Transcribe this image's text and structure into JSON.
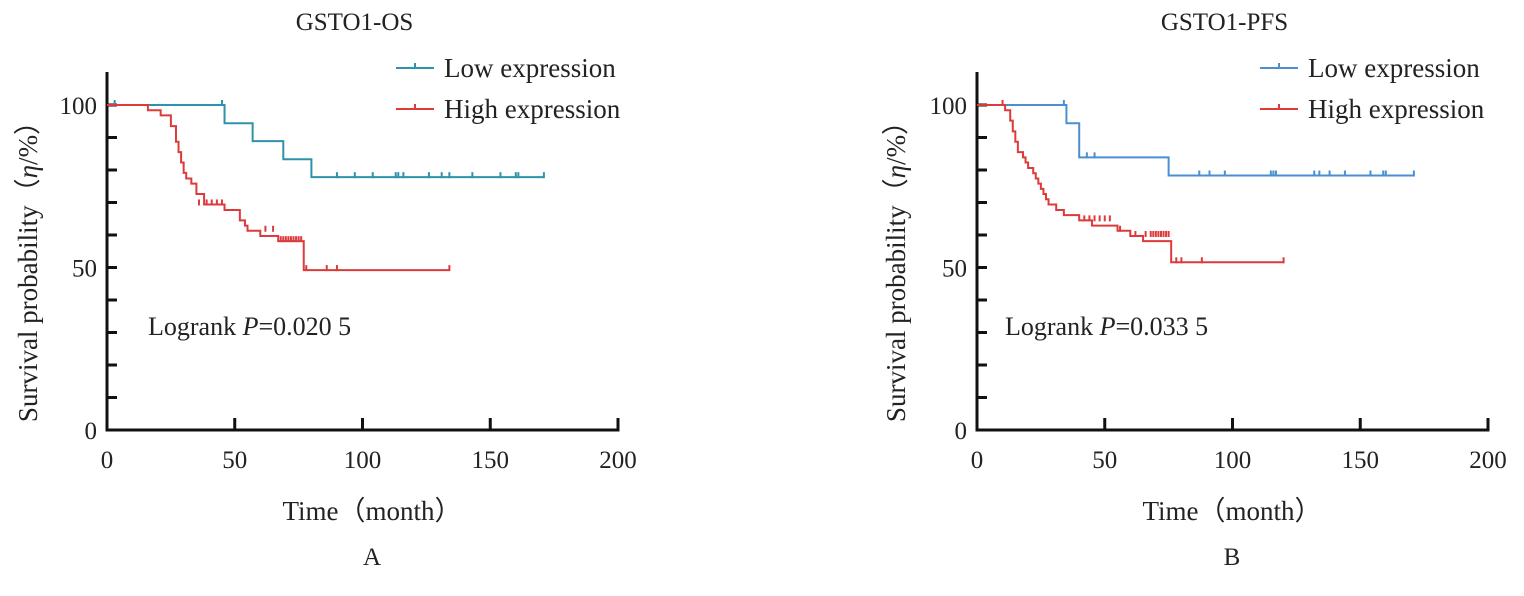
{
  "chart_data": [
    {
      "type": "line",
      "chart_kind": "kaplan-meier",
      "title": "GSTO1-OS",
      "panel_label": "A",
      "xlabel": "Time（month）",
      "ylabel_main": "Survival probability（",
      "ylabel_italic": "η",
      "ylabel_tail": "/%）",
      "xlim": [
        0,
        200
      ],
      "ylim": [
        0,
        100
      ],
      "x_ticks": [
        0,
        50,
        100,
        150,
        200
      ],
      "y_ticks": [
        0,
        50,
        100
      ],
      "grid": false,
      "legend_position": "top-right",
      "annotation": {
        "prefix": "Logrank ",
        "italic": "P",
        "suffix": "=0.020 5"
      },
      "series": [
        {
          "name": "Low expression",
          "color": "#2e93aa",
          "steps": [
            [
              0,
              100
            ],
            [
              46,
              94.4
            ],
            [
              57,
              88.9
            ],
            [
              69,
              83.3
            ],
            [
              80,
              77.8
            ],
            [
              171,
              77.8
            ]
          ],
          "censored": [
            [
              3,
              100
            ],
            [
              45,
              100
            ],
            [
              90,
              77.8
            ],
            [
              97,
              77.8
            ],
            [
              104,
              77.8
            ],
            [
              113,
              77.8
            ],
            [
              114,
              77.8
            ],
            [
              116,
              77.8
            ],
            [
              126,
              77.8
            ],
            [
              131,
              77.8
            ],
            [
              134,
              77.8
            ],
            [
              143,
              77.8
            ],
            [
              154,
              77.8
            ],
            [
              160,
              77.8
            ],
            [
              161,
              77.8
            ],
            [
              171,
              77.8
            ]
          ]
        },
        {
          "name": "High expression",
          "color": "#dd3b3b",
          "steps": [
            [
              0,
              100
            ],
            [
              16,
              98.4
            ],
            [
              21,
              96.8
            ],
            [
              25,
              93.5
            ],
            [
              27,
              88.7
            ],
            [
              28,
              85.5
            ],
            [
              29,
              82.3
            ],
            [
              30,
              79.1
            ],
            [
              31,
              77.4
            ],
            [
              33,
              75.8
            ],
            [
              35,
              72.6
            ],
            [
              38,
              69.4
            ],
            [
              46,
              67.7
            ],
            [
              52,
              64.5
            ],
            [
              54,
              62.9
            ],
            [
              55,
              61.3
            ],
            [
              60,
              59.7
            ],
            [
              67,
              58.1
            ],
            [
              77,
              49.2
            ],
            [
              134,
              49.2
            ]
          ],
          "censored": [
            [
              36,
              69.4
            ],
            [
              39,
              69.4
            ],
            [
              41,
              69.4
            ],
            [
              43,
              69.4
            ],
            [
              45,
              69.4
            ],
            [
              62,
              61.3
            ],
            [
              65,
              61.3
            ],
            [
              68,
              58.1
            ],
            [
              69,
              58.1
            ],
            [
              70,
              58.1
            ],
            [
              71,
              58.1
            ],
            [
              72,
              58.1
            ],
            [
              73,
              58.1
            ],
            [
              74,
              58.1
            ],
            [
              75,
              58.1
            ],
            [
              76,
              58.1
            ],
            [
              78,
              49.2
            ],
            [
              86,
              49.2
            ],
            [
              90,
              49.2
            ],
            [
              134,
              49.2
            ]
          ]
        }
      ]
    },
    {
      "type": "line",
      "chart_kind": "kaplan-meier",
      "title": "GSTO1-PFS",
      "panel_label": "B",
      "xlabel": "Time（month）",
      "ylabel_main": "Survival probability（",
      "ylabel_italic": "η",
      "ylabel_tail": "/%）",
      "xlim": [
        0,
        200
      ],
      "ylim": [
        0,
        100
      ],
      "x_ticks": [
        0,
        50,
        100,
        150,
        200
      ],
      "y_ticks": [
        0,
        50,
        100
      ],
      "grid": false,
      "legend_position": "top-right",
      "annotation": {
        "prefix": "Logrank ",
        "italic": "P",
        "suffix": "=0.033 5"
      },
      "series": [
        {
          "name": "Low expression",
          "color": "#4a8fd0",
          "steps": [
            [
              0,
              100
            ],
            [
              35,
              94.4
            ],
            [
              40,
              83.9
            ],
            [
              75,
              78.3
            ],
            [
              171,
              78.3
            ]
          ],
          "censored": [
            [
              34,
              100
            ],
            [
              43,
              83.9
            ],
            [
              46,
              83.9
            ],
            [
              87,
              78.3
            ],
            [
              91,
              78.3
            ],
            [
              97,
              78.3
            ],
            [
              115,
              78.3
            ],
            [
              116,
              78.3
            ],
            [
              117,
              78.3
            ],
            [
              132,
              78.3
            ],
            [
              134,
              78.3
            ],
            [
              138,
              78.3
            ],
            [
              144,
              78.3
            ],
            [
              154,
              78.3
            ],
            [
              159,
              78.3
            ],
            [
              160,
              78.3
            ],
            [
              171,
              78.3
            ]
          ]
        },
        {
          "name": "High expression",
          "color": "#dd3b3b",
          "steps": [
            [
              0,
              100
            ],
            [
              11,
              98.4
            ],
            [
              13,
              95.2
            ],
            [
              14,
              91.9
            ],
            [
              15,
              88.7
            ],
            [
              16,
              85.5
            ],
            [
              18,
              83.9
            ],
            [
              19,
              82.3
            ],
            [
              20,
              80.6
            ],
            [
              22,
              79
            ],
            [
              23,
              77.4
            ],
            [
              24,
              75.8
            ],
            [
              25,
              74.2
            ],
            [
              26,
              72.6
            ],
            [
              27,
              71
            ],
            [
              28,
              69.4
            ],
            [
              31,
              67.7
            ],
            [
              34,
              66.1
            ],
            [
              40,
              64.5
            ],
            [
              45,
              62.9
            ],
            [
              55,
              61.3
            ],
            [
              60,
              59.7
            ],
            [
              65,
              58.1
            ],
            [
              76,
              51.6
            ],
            [
              120,
              51.6
            ]
          ],
          "censored": [
            [
              10,
              100
            ],
            [
              42,
              64.5
            ],
            [
              44,
              64.5
            ],
            [
              46,
              64.5
            ],
            [
              48,
              64.5
            ],
            [
              50,
              64.5
            ],
            [
              52,
              64.5
            ],
            [
              56,
              61.3
            ],
            [
              62,
              59.7
            ],
            [
              66,
              59.7
            ],
            [
              68,
              59.7
            ],
            [
              69,
              59.7
            ],
            [
              70,
              59.7
            ],
            [
              71,
              59.7
            ],
            [
              72,
              59.7
            ],
            [
              73,
              59.7
            ],
            [
              74,
              59.7
            ],
            [
              75,
              59.7
            ],
            [
              78,
              51.6
            ],
            [
              80,
              51.6
            ],
            [
              88,
              51.6
            ],
            [
              120,
              51.6
            ]
          ]
        }
      ]
    }
  ]
}
